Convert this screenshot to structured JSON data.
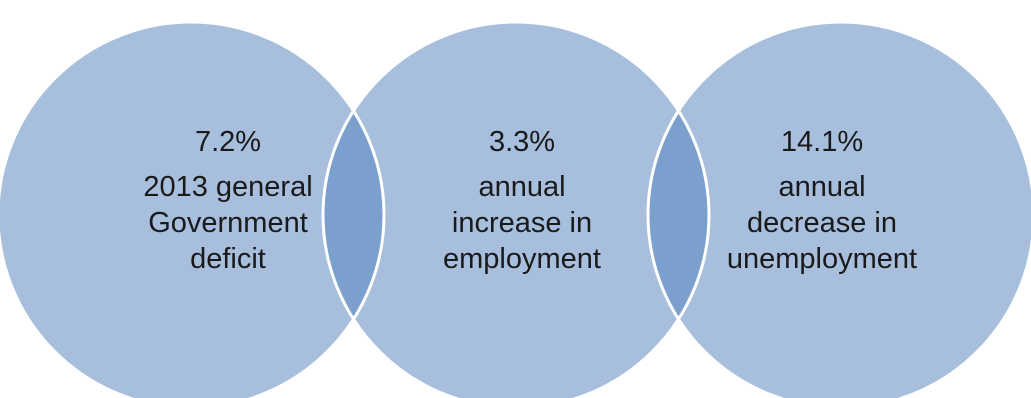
{
  "colors": {
    "circle_fill": "#a7bfdc",
    "circle_stroke": "#ffffff",
    "overlap_fill": "#7ba0cd",
    "text": "#1a1a1a"
  },
  "circles": [
    {
      "value": "7.2%",
      "description_lines": [
        "2013 general",
        "Government",
        "deficit"
      ]
    },
    {
      "value": "3.3%",
      "description_lines": [
        "annual",
        "increase in",
        "employment"
      ]
    },
    {
      "value": "14.1%",
      "description_lines": [
        "annual",
        "decrease in",
        "unemployment"
      ]
    }
  ]
}
